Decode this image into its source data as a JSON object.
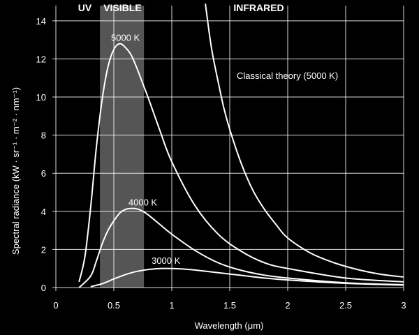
{
  "chart_data": {
    "type": "line",
    "xlabel": "Wavelength (μm)",
    "ylabel": "Spectral radiance (kW · sr⁻¹ · m⁻² · nm⁻¹)",
    "xlim": [
      0,
      3
    ],
    "ylim": [
      0,
      14.8
    ],
    "x_ticks": [
      0,
      0.5,
      1,
      1.5,
      2,
      2.5,
      3
    ],
    "x_tick_labels": [
      "0",
      "0.5",
      "1",
      "1.5",
      "2",
      "2.5",
      "3"
    ],
    "y_ticks": [
      0,
      2,
      4,
      6,
      8,
      10,
      12,
      14
    ],
    "y_tick_labels": [
      "0",
      "2",
      "4",
      "6",
      "8",
      "10",
      "12",
      "14"
    ],
    "grid": true,
    "background": "#000000",
    "foreground": "#ffffff",
    "regions": [
      {
        "label": "UV",
        "x_center": 0.25
      },
      {
        "label": "VISIBLE",
        "x_center": 0.575,
        "x_range": [
          0.38,
          0.76
        ],
        "shade": "#555555"
      },
      {
        "label": "INFRARED",
        "x_center": 1.75
      }
    ],
    "series": [
      {
        "name": "5000 K",
        "label": "5000 K",
        "label_at": [
          0.6,
          12.95
        ],
        "x": [
          0.2,
          0.25,
          0.3,
          0.35,
          0.4,
          0.45,
          0.5,
          0.55,
          0.6,
          0.65,
          0.7,
          0.75,
          0.8,
          0.9,
          1.0,
          1.2,
          1.4,
          1.6,
          1.8,
          2.0,
          2.5,
          3.0
        ],
        "y": [
          0.3,
          1.6,
          4.2,
          7.4,
          9.9,
          11.6,
          12.5,
          12.8,
          12.6,
          12.2,
          11.5,
          10.7,
          9.9,
          8.2,
          6.6,
          4.3,
          2.8,
          1.9,
          1.3,
          1.0,
          0.5,
          0.3
        ]
      },
      {
        "name": "4000 K",
        "label": "4000 K",
        "label_at": [
          0.75,
          4.3
        ],
        "x": [
          0.2,
          0.3,
          0.35,
          0.4,
          0.45,
          0.5,
          0.55,
          0.6,
          0.65,
          0.7,
          0.75,
          0.8,
          0.9,
          1.0,
          1.2,
          1.4,
          1.6,
          1.8,
          2.0,
          2.5,
          3.0
        ],
        "y": [
          0.0,
          0.6,
          1.4,
          2.3,
          3.0,
          3.5,
          3.9,
          4.1,
          4.15,
          4.13,
          4.0,
          3.8,
          3.3,
          2.8,
          1.95,
          1.3,
          0.9,
          0.65,
          0.5,
          0.25,
          0.15
        ]
      },
      {
        "name": "3000 K",
        "label": "3000 K",
        "label_at": [
          0.95,
          1.25
        ],
        "x": [
          0.3,
          0.4,
          0.5,
          0.6,
          0.7,
          0.8,
          0.9,
          1.0,
          1.1,
          1.2,
          1.4,
          1.6,
          1.8,
          2.0,
          2.5,
          3.0
        ],
        "y": [
          0.05,
          0.2,
          0.45,
          0.68,
          0.85,
          0.95,
          1.0,
          1.0,
          0.97,
          0.92,
          0.78,
          0.64,
          0.5,
          0.4,
          0.22,
          0.13
        ]
      },
      {
        "name": "Classical theory (5000 K)",
        "label": "Classical theory (5000 K)",
        "label_at": [
          1.56,
          10.95
        ],
        "x": [
          1.29,
          1.32,
          1.35,
          1.4,
          1.45,
          1.5,
          1.6,
          1.7,
          1.8,
          1.9,
          2.0,
          2.2,
          2.4,
          2.6,
          2.8,
          3.0
        ],
        "y": [
          14.9,
          13.5,
          12.3,
          10.8,
          9.4,
          8.3,
          6.5,
          5.1,
          4.1,
          3.3,
          2.6,
          1.8,
          1.3,
          0.95,
          0.7,
          0.55
        ]
      }
    ]
  }
}
